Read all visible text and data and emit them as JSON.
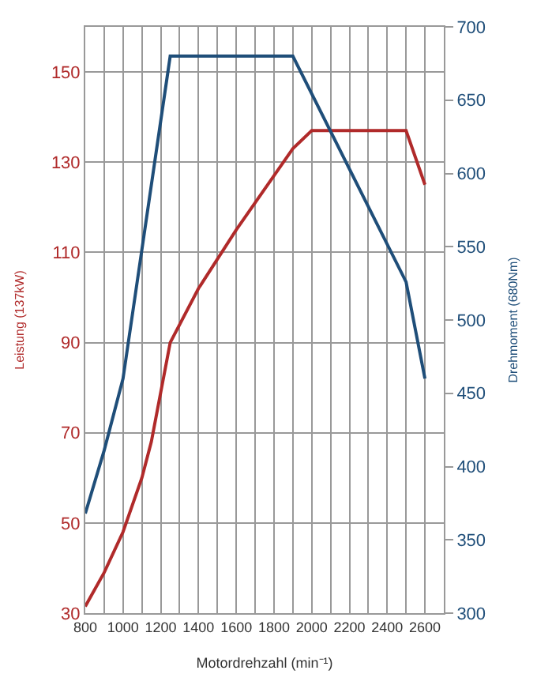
{
  "chart_data": {
    "type": "line",
    "xlabel": "Motordrehzahl (min⁻¹)",
    "ylabel": "Leistung (137kW)",
    "y2label": "Drehmoment (680Nm)",
    "series": [
      {
        "color": "#b02a2a",
        "x": [
          800,
          900,
          1000,
          1100,
          1150,
          1250,
          1400,
          1600,
          1800,
          1900,
          2000,
          2500,
          2600
        ],
        "values": [
          31.5,
          39,
          48,
          60,
          68,
          90,
          102,
          115,
          127,
          133,
          137,
          137,
          125
        ]
      },
      {
        "color": "#1f4e79",
        "axis": "y2",
        "x": [
          800,
          900,
          1000,
          1250,
          1900,
          2500,
          2600
        ],
        "values": [
          368,
          411,
          460,
          680,
          680,
          526,
          460
        ]
      }
    ],
    "xlim": [
      800,
      2700
    ],
    "xticks": [
      800,
      {
        "value": 900,
        "label": null
      },
      1000,
      {
        "value": 1100,
        "label": null
      },
      1200,
      {
        "value": 1300,
        "label": null
      },
      1400,
      {
        "value": 1500,
        "label": null
      },
      1600,
      {
        "value": 1700,
        "label": null
      },
      1800,
      {
        "value": 1900,
        "label": null
      },
      2000,
      {
        "value": 2100,
        "label": null
      },
      2200,
      {
        "value": 2300,
        "label": null
      },
      2400,
      {
        "value": 2500,
        "label": null
      },
      2600
    ],
    "ylim": [
      30,
      160
    ],
    "yticks": [
      30,
      50,
      70,
      90,
      110,
      130,
      150
    ],
    "y2lim": [
      300,
      700
    ],
    "y2ticks": [
      300,
      350,
      400,
      450,
      500,
      550,
      600,
      650,
      700
    ],
    "grid": true,
    "marker": "none",
    "line_style": "solid"
  }
}
